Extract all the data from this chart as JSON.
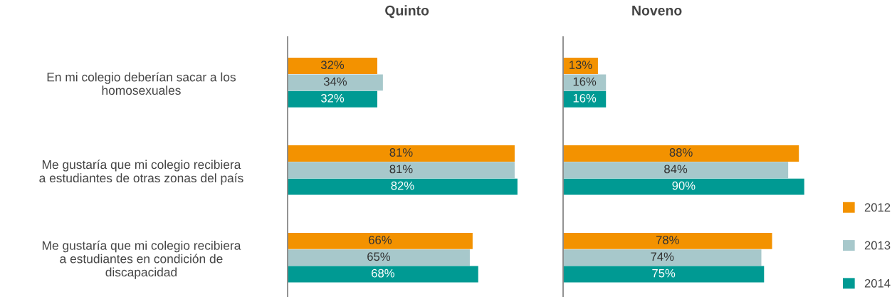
{
  "chart_data": [
    {
      "type": "bar",
      "orientation": "horizontal",
      "title": "Quinto",
      "categories": [
        "En mi colegio deberían sacar a los\nhomosexuales",
        "Me gustaría que mi colegio recibiera\na estudiantes de otras zonas del país",
        "Me gustaría que mi colegio recibiera\na estudiantes en condición de\ndiscapacidad"
      ],
      "series": [
        {
          "name": "2012",
          "color": "#f39200",
          "values": [
            32,
            81,
            66
          ],
          "value_labels": [
            "32%",
            "81%",
            "66%"
          ]
        },
        {
          "name": "2013",
          "color": "#a7c8cb",
          "values": [
            34,
            81,
            65
          ],
          "value_labels": [
            "34%",
            "81%",
            "65%"
          ]
        },
        {
          "name": "2014",
          "color": "#009a93",
          "values": [
            32,
            82,
            68
          ],
          "value_labels": [
            "32%",
            "82%",
            "68%"
          ]
        }
      ],
      "tick_labels": "y",
      "grid": false,
      "legend": "right"
    },
    {
      "type": "bar",
      "orientation": "horizontal",
      "title": "Noveno",
      "categories": [
        null,
        null,
        null
      ],
      "series": [
        {
          "name": "2012",
          "color": "#f39200",
          "values": [
            13,
            88,
            78
          ],
          "value_labels": [
            "13%",
            "88%",
            "78%"
          ]
        },
        {
          "name": "2013",
          "color": "#a7c8cb",
          "values": [
            16,
            84,
            74
          ],
          "value_labels": [
            "16%",
            "84%",
            "74%"
          ]
        },
        {
          "name": "2014",
          "color": "#009a93",
          "values": [
            16,
            90,
            75
          ],
          "value_labels": [
            "16%",
            "90%",
            "75%"
          ]
        }
      ],
      "tick_labels": false,
      "grid": false
    }
  ]
}
